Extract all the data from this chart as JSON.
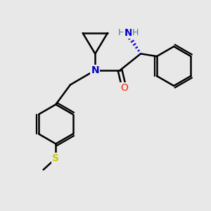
{
  "bg_color": "#e8e8e8",
  "atom_colors": {
    "N": "#0000cc",
    "O": "#ff2200",
    "S": "#cccc00",
    "C": "#000000",
    "H": "#408080"
  },
  "bond_color": "#000000",
  "line_width": 1.8,
  "figsize": [
    3.0,
    3.0
  ],
  "dpi": 100
}
